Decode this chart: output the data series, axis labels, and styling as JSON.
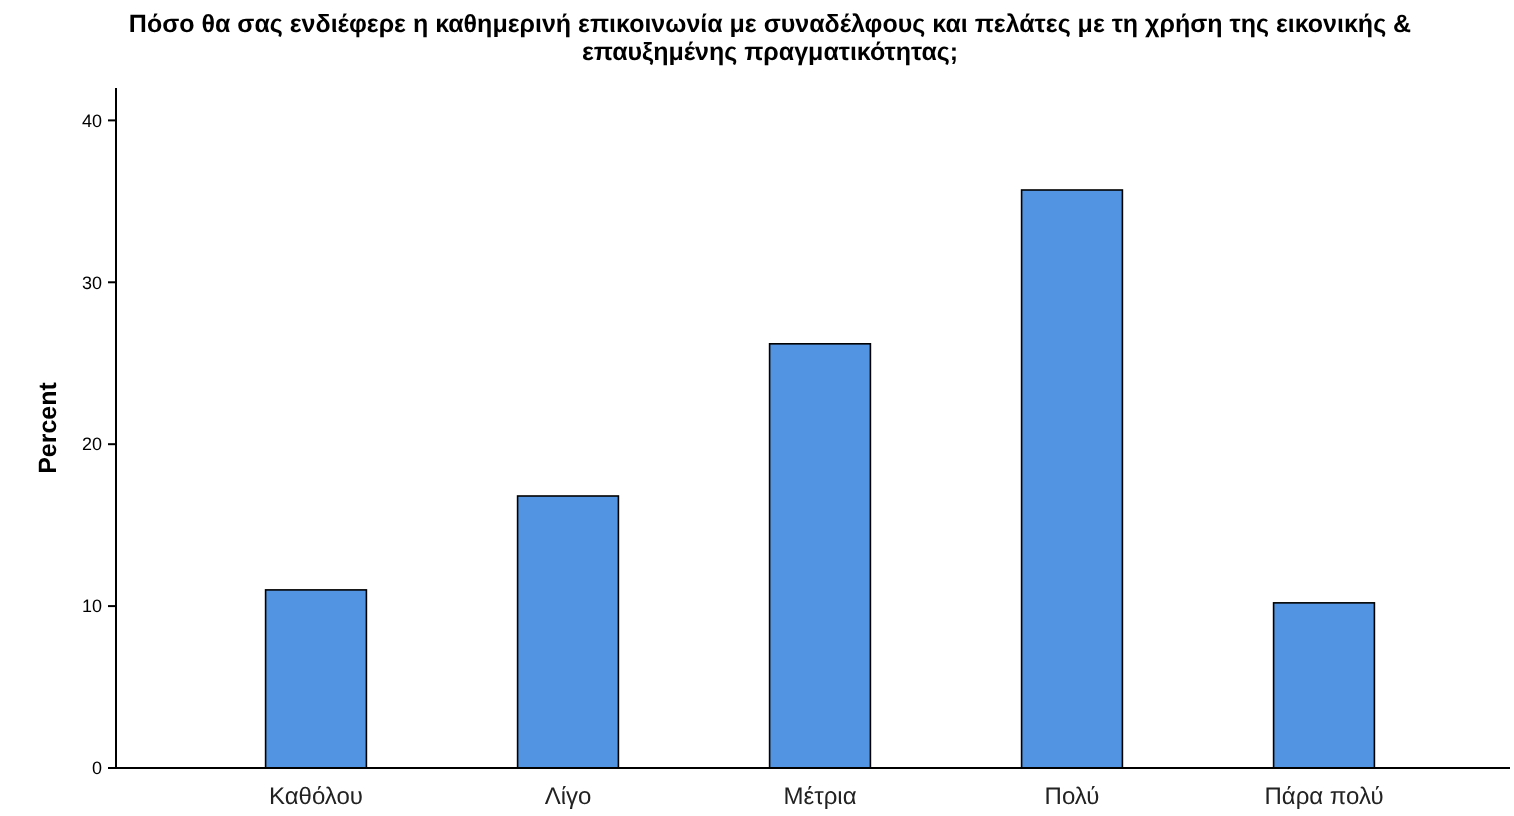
{
  "chart_data": {
    "type": "bar",
    "title": "Πόσο θα σας ενδιέφερε η καθημερινή επικοινωνία  με συναδέλφους και πελάτες με τη χρήση της εικονικής & επαυξημένης πραγματικότητας;",
    "categories": [
      "Καθόλου",
      "Λίγο",
      "Μέτρια",
      "Πολύ",
      "Πάρα πολύ"
    ],
    "values": [
      11.0,
      16.8,
      26.2,
      35.7,
      10.2
    ],
    "color": "#5294e2",
    "ylabel": "Percent",
    "ylim": [
      0,
      42
    ],
    "yticks": [
      0,
      10,
      20,
      30,
      40
    ],
    "grid": false
  }
}
